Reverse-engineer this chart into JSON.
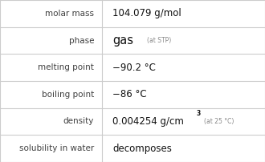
{
  "rows": [
    {
      "label": "molar mass",
      "value": "104.079 g/mol",
      "type": "plain"
    },
    {
      "label": "phase",
      "value": "gas",
      "small": "(at STP)",
      "type": "phase"
    },
    {
      "label": "melting point",
      "value": "−90.2 °C",
      "type": "plain"
    },
    {
      "label": "boiling point",
      "value": "−86 °C",
      "type": "plain"
    },
    {
      "label": "density",
      "value": "0.004254 g/cm",
      "superscript": "3",
      "small": "(at 25 °C)",
      "type": "density"
    },
    {
      "label": "solubility in water",
      "value": "decomposes",
      "type": "plain"
    }
  ],
  "bg_color": "#ffffff",
  "border_color": "#cccccc",
  "label_color": "#404040",
  "value_color": "#111111",
  "small_color": "#888888",
  "divider_color": "#cccccc",
  "col_split": 0.385,
  "label_fontsize": 7.5,
  "value_fontsize": 8.5,
  "phase_fontsize": 10.5,
  "small_fontsize": 5.5
}
